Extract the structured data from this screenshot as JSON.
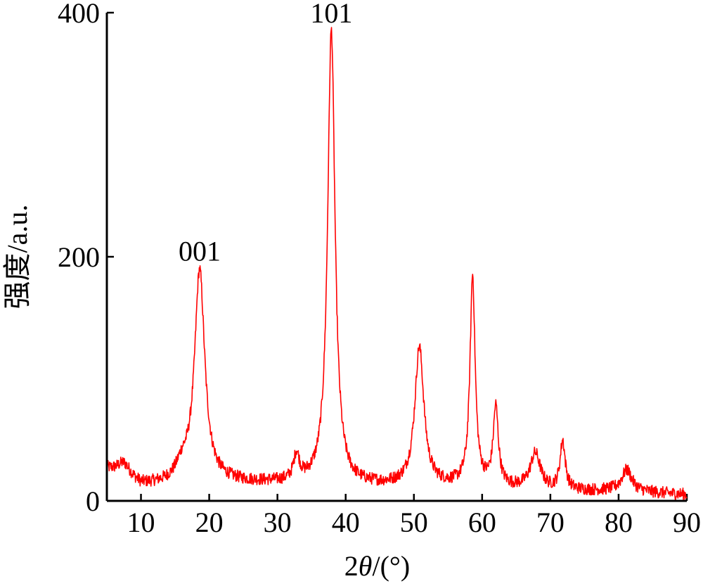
{
  "chart_data": {
    "type": "line",
    "title": "",
    "xlabel": "2θ/(°)",
    "ylabel": "强度/a.u.",
    "xlim": [
      5,
      90
    ],
    "ylim": [
      0,
      400
    ],
    "x_ticks": [
      10,
      20,
      30,
      40,
      50,
      60,
      70,
      80,
      90
    ],
    "y_ticks": [
      0,
      200,
      400
    ],
    "grid": false,
    "legend": "none",
    "series": [
      {
        "color": "#ff0000",
        "peaks": [
          {
            "x": 7.5,
            "y": 30,
            "width": 1.2
          },
          {
            "x": 16.0,
            "y": 25,
            "width": 1.0
          },
          {
            "x": 18.6,
            "y": 188,
            "width": 0.9
          },
          {
            "x": 32.8,
            "y": 35,
            "width": 0.5
          },
          {
            "x": 37.9,
            "y": 385,
            "width": 0.65
          },
          {
            "x": 50.8,
            "y": 125,
            "width": 0.8
          },
          {
            "x": 58.6,
            "y": 183,
            "width": 0.45
          },
          {
            "x": 62.0,
            "y": 75,
            "width": 0.45
          },
          {
            "x": 67.8,
            "y": 38,
            "width": 0.9
          },
          {
            "x": 71.8,
            "y": 48,
            "width": 0.45
          },
          {
            "x": 81.2,
            "y": 25,
            "width": 0.9
          }
        ],
        "baseline": [
          [
            5,
            25
          ],
          [
            10,
            12
          ],
          [
            20,
            15
          ],
          [
            30,
            14
          ],
          [
            40,
            12
          ],
          [
            50,
            12
          ],
          [
            60,
            12
          ],
          [
            70,
            8
          ],
          [
            80,
            8
          ],
          [
            90,
            5
          ]
        ],
        "noise_amplitude": 5
      }
    ],
    "annotations": [
      {
        "text": "001",
        "x": 18.6,
        "y": 205
      },
      {
        "text": "101",
        "x": 37.9,
        "y": 400
      }
    ]
  }
}
